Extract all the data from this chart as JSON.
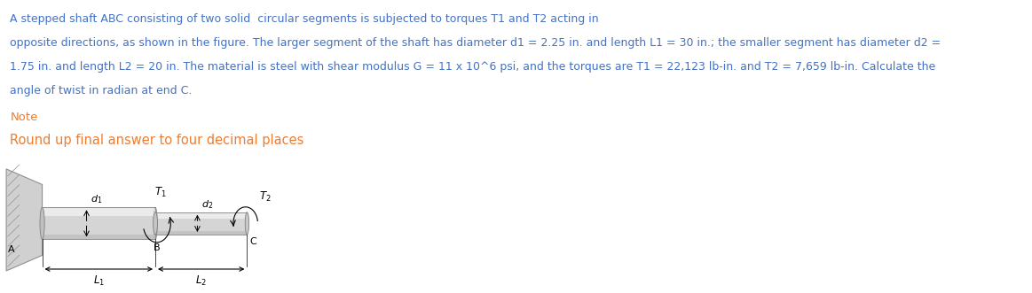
{
  "text_color_blue": "#4472C4",
  "text_color_orange": "#ED7D31",
  "background_color": "#ffffff",
  "line1": "A stepped shaft ABC consisting of two solid  circular segments is subjected to torques T1 and T2 acting in",
  "line2": "opposite directions, as shown in the figure. The larger segment of the shaft has diameter d1 = 2.25 in. and length L1 = 30 in.; the smaller segment has diameter d2 =",
  "line3": "1.75 in. and length L2 = 20 in. The material is steel with shear modulus G = 11 x 10^6 psi, and the torques are T1 = 22,123 lb-in. and T2 = 7,659 lb-in. Calculate the",
  "line4": "angle of twist in radian at end C.",
  "note_label": "Note",
  "round_label": "Round up final answer to four decimal places",
  "font_size_body": 9.0,
  "font_size_note": 9.5,
  "font_size_round": 10.5
}
